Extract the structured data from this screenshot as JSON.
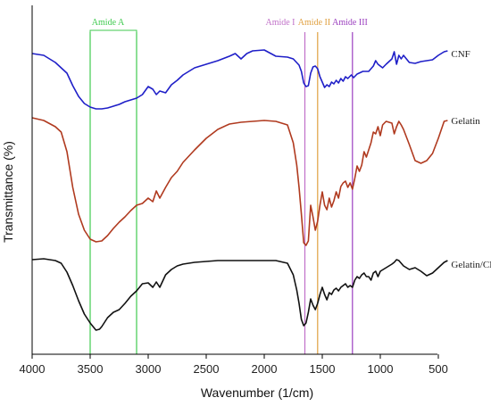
{
  "chart_data": {
    "type": "line",
    "xlabel": "Wavenumber (1/cm)",
    "ylabel": "Transmittance (%)",
    "xlim": [
      4000,
      350
    ],
    "x_reversed": true,
    "x_ticks": [
      4000,
      3500,
      3000,
      2500,
      2000,
      1500,
      1000,
      500
    ],
    "y_ticks_shown": false,
    "grid": false,
    "legend": "inline labels at right end of each curve",
    "series": [
      {
        "name": "CNF",
        "color": "#1f1fc8",
        "points": [
          [
            4000,
            60
          ],
          [
            3900,
            62
          ],
          [
            3800,
            70
          ],
          [
            3700,
            82
          ],
          [
            3650,
            96
          ],
          [
            3600,
            108
          ],
          [
            3550,
            116
          ],
          [
            3500,
            120
          ],
          [
            3450,
            122
          ],
          [
            3400,
            122
          ],
          [
            3350,
            121
          ],
          [
            3300,
            119
          ],
          [
            3250,
            117
          ],
          [
            3200,
            114
          ],
          [
            3150,
            112
          ],
          [
            3100,
            110
          ],
          [
            3050,
            106
          ],
          [
            3000,
            97
          ],
          [
            2960,
            100
          ],
          [
            2930,
            106
          ],
          [
            2900,
            102
          ],
          [
            2850,
            104
          ],
          [
            2800,
            95
          ],
          [
            2750,
            90
          ],
          [
            2700,
            84
          ],
          [
            2600,
            76
          ],
          [
            2500,
            72
          ],
          [
            2400,
            68
          ],
          [
            2300,
            63
          ],
          [
            2250,
            60
          ],
          [
            2200,
            66
          ],
          [
            2150,
            60
          ],
          [
            2100,
            57
          ],
          [
            2000,
            56
          ],
          [
            1900,
            63
          ],
          [
            1800,
            64
          ],
          [
            1750,
            66
          ],
          [
            1700,
            73
          ],
          [
            1680,
            80
          ],
          [
            1660,
            93
          ],
          [
            1640,
            97
          ],
          [
            1620,
            96
          ],
          [
            1600,
            82
          ],
          [
            1580,
            75
          ],
          [
            1560,
            74
          ],
          [
            1540,
            77
          ],
          [
            1520,
            86
          ],
          [
            1500,
            92
          ],
          [
            1480,
            98
          ],
          [
            1460,
            95
          ],
          [
            1440,
            97
          ],
          [
            1420,
            92
          ],
          [
            1400,
            94
          ],
          [
            1380,
            90
          ],
          [
            1360,
            93
          ],
          [
            1340,
            88
          ],
          [
            1320,
            91
          ],
          [
            1300,
            86
          ],
          [
            1280,
            88
          ],
          [
            1250,
            84
          ],
          [
            1230,
            87
          ],
          [
            1200,
            83
          ],
          [
            1150,
            80
          ],
          [
            1100,
            80
          ],
          [
            1060,
            74
          ],
          [
            1040,
            68
          ],
          [
            1020,
            72
          ],
          [
            980,
            76
          ],
          [
            950,
            72
          ],
          [
            900,
            66
          ],
          [
            880,
            58
          ],
          [
            860,
            72
          ],
          [
            840,
            62
          ],
          [
            820,
            66
          ],
          [
            800,
            62
          ],
          [
            750,
            70
          ],
          [
            700,
            71
          ],
          [
            650,
            69
          ],
          [
            600,
            68
          ],
          [
            550,
            67
          ],
          [
            500,
            62
          ],
          [
            450,
            58
          ],
          [
            420,
            57
          ]
        ]
      },
      {
        "name": "Gelatin",
        "color": "#b03a1f",
        "points": [
          [
            4000,
            132
          ],
          [
            3900,
            135
          ],
          [
            3800,
            142
          ],
          [
            3750,
            148
          ],
          [
            3700,
            170
          ],
          [
            3650,
            210
          ],
          [
            3600,
            240
          ],
          [
            3550,
            258
          ],
          [
            3500,
            268
          ],
          [
            3450,
            271
          ],
          [
            3400,
            270
          ],
          [
            3350,
            264
          ],
          [
            3300,
            256
          ],
          [
            3250,
            249
          ],
          [
            3200,
            243
          ],
          [
            3150,
            236
          ],
          [
            3100,
            230
          ],
          [
            3050,
            228
          ],
          [
            3000,
            222
          ],
          [
            2960,
            226
          ],
          [
            2930,
            214
          ],
          [
            2900,
            222
          ],
          [
            2850,
            210
          ],
          [
            2800,
            199
          ],
          [
            2750,
            192
          ],
          [
            2700,
            182
          ],
          [
            2600,
            168
          ],
          [
            2500,
            155
          ],
          [
            2400,
            145
          ],
          [
            2300,
            139
          ],
          [
            2200,
            137
          ],
          [
            2100,
            136
          ],
          [
            2000,
            135
          ],
          [
            1900,
            136
          ],
          [
            1800,
            140
          ],
          [
            1750,
            160
          ],
          [
            1720,
            185
          ],
          [
            1700,
            210
          ],
          [
            1680,
            240
          ],
          [
            1660,
            272
          ],
          [
            1640,
            275
          ],
          [
            1620,
            270
          ],
          [
            1600,
            230
          ],
          [
            1580,
            243
          ],
          [
            1560,
            258
          ],
          [
            1540,
            248
          ],
          [
            1520,
            230
          ],
          [
            1500,
            215
          ],
          [
            1480,
            230
          ],
          [
            1460,
            235
          ],
          [
            1440,
            222
          ],
          [
            1420,
            232
          ],
          [
            1400,
            225
          ],
          [
            1380,
            215
          ],
          [
            1360,
            222
          ],
          [
            1340,
            209
          ],
          [
            1320,
            205
          ],
          [
            1300,
            203
          ],
          [
            1280,
            210
          ],
          [
            1260,
            205
          ],
          [
            1240,
            212
          ],
          [
            1220,
            200
          ],
          [
            1200,
            186
          ],
          [
            1180,
            192
          ],
          [
            1160,
            185
          ],
          [
            1140,
            170
          ],
          [
            1120,
            176
          ],
          [
            1100,
            168
          ],
          [
            1080,
            160
          ],
          [
            1060,
            148
          ],
          [
            1040,
            150
          ],
          [
            1020,
            142
          ],
          [
            1000,
            152
          ],
          [
            980,
            140
          ],
          [
            950,
            136
          ],
          [
            900,
            138
          ],
          [
            880,
            150
          ],
          [
            860,
            142
          ],
          [
            840,
            136
          ],
          [
            820,
            140
          ],
          [
            800,
            145
          ],
          [
            750,
            162
          ],
          [
            700,
            180
          ],
          [
            650,
            183
          ],
          [
            600,
            180
          ],
          [
            550,
            172
          ],
          [
            500,
            155
          ],
          [
            450,
            136
          ],
          [
            420,
            135
          ]
        ]
      },
      {
        "name": "Gelatin/CNF",
        "color": "#111111",
        "points": [
          [
            4000,
            291
          ],
          [
            3900,
            290
          ],
          [
            3800,
            292
          ],
          [
            3750,
            295
          ],
          [
            3700,
            305
          ],
          [
            3650,
            320
          ],
          [
            3600,
            337
          ],
          [
            3550,
            352
          ],
          [
            3500,
            362
          ],
          [
            3450,
            370
          ],
          [
            3420,
            369
          ],
          [
            3400,
            366
          ],
          [
            3350,
            356
          ],
          [
            3300,
            350
          ],
          [
            3250,
            347
          ],
          [
            3200,
            340
          ],
          [
            3150,
            332
          ],
          [
            3100,
            326
          ],
          [
            3050,
            318
          ],
          [
            3000,
            317
          ],
          [
            2960,
            322
          ],
          [
            2930,
            316
          ],
          [
            2900,
            322
          ],
          [
            2850,
            308
          ],
          [
            2800,
            302
          ],
          [
            2750,
            298
          ],
          [
            2700,
            296
          ],
          [
            2600,
            294
          ],
          [
            2500,
            293
          ],
          [
            2400,
            292
          ],
          [
            2300,
            292
          ],
          [
            2200,
            292
          ],
          [
            2100,
            292
          ],
          [
            2000,
            292
          ],
          [
            1900,
            292
          ],
          [
            1800,
            295
          ],
          [
            1750,
            308
          ],
          [
            1720,
            325
          ],
          [
            1700,
            340
          ],
          [
            1680,
            358
          ],
          [
            1660,
            365
          ],
          [
            1640,
            362
          ],
          [
            1620,
            350
          ],
          [
            1600,
            335
          ],
          [
            1580,
            342
          ],
          [
            1560,
            347
          ],
          [
            1540,
            340
          ],
          [
            1520,
            330
          ],
          [
            1500,
            322
          ],
          [
            1480,
            330
          ],
          [
            1460,
            336
          ],
          [
            1440,
            328
          ],
          [
            1420,
            330
          ],
          [
            1400,
            325
          ],
          [
            1380,
            323
          ],
          [
            1360,
            326
          ],
          [
            1340,
            322
          ],
          [
            1320,
            320
          ],
          [
            1300,
            318
          ],
          [
            1280,
            322
          ],
          [
            1260,
            320
          ],
          [
            1240,
            322
          ],
          [
            1220,
            314
          ],
          [
            1200,
            310
          ],
          [
            1180,
            312
          ],
          [
            1160,
            308
          ],
          [
            1140,
            306
          ],
          [
            1120,
            310
          ],
          [
            1100,
            310
          ],
          [
            1080,
            314
          ],
          [
            1060,
            306
          ],
          [
            1040,
            304
          ],
          [
            1020,
            310
          ],
          [
            1000,
            304
          ],
          [
            950,
            300
          ],
          [
            900,
            296
          ],
          [
            880,
            294
          ],
          [
            860,
            291
          ],
          [
            840,
            292
          ],
          [
            800,
            298
          ],
          [
            750,
            302
          ],
          [
            700,
            300
          ],
          [
            650,
            304
          ],
          [
            600,
            309
          ],
          [
            550,
            306
          ],
          [
            500,
            300
          ],
          [
            450,
            294
          ],
          [
            420,
            292
          ]
        ]
      }
    ],
    "bands": [
      {
        "name": "Amide A",
        "x": [
          3500,
          3100
        ],
        "color": "#3fca4f"
      },
      {
        "name": "Amide I",
        "x": [
          1650
        ],
        "color": "#c070c8"
      },
      {
        "name": "Amide II",
        "x": [
          1540
        ],
        "color": "#e0a040"
      },
      {
        "name": "Amide III",
        "x": [
          1240
        ],
        "color": "#9b3fbf"
      }
    ]
  }
}
